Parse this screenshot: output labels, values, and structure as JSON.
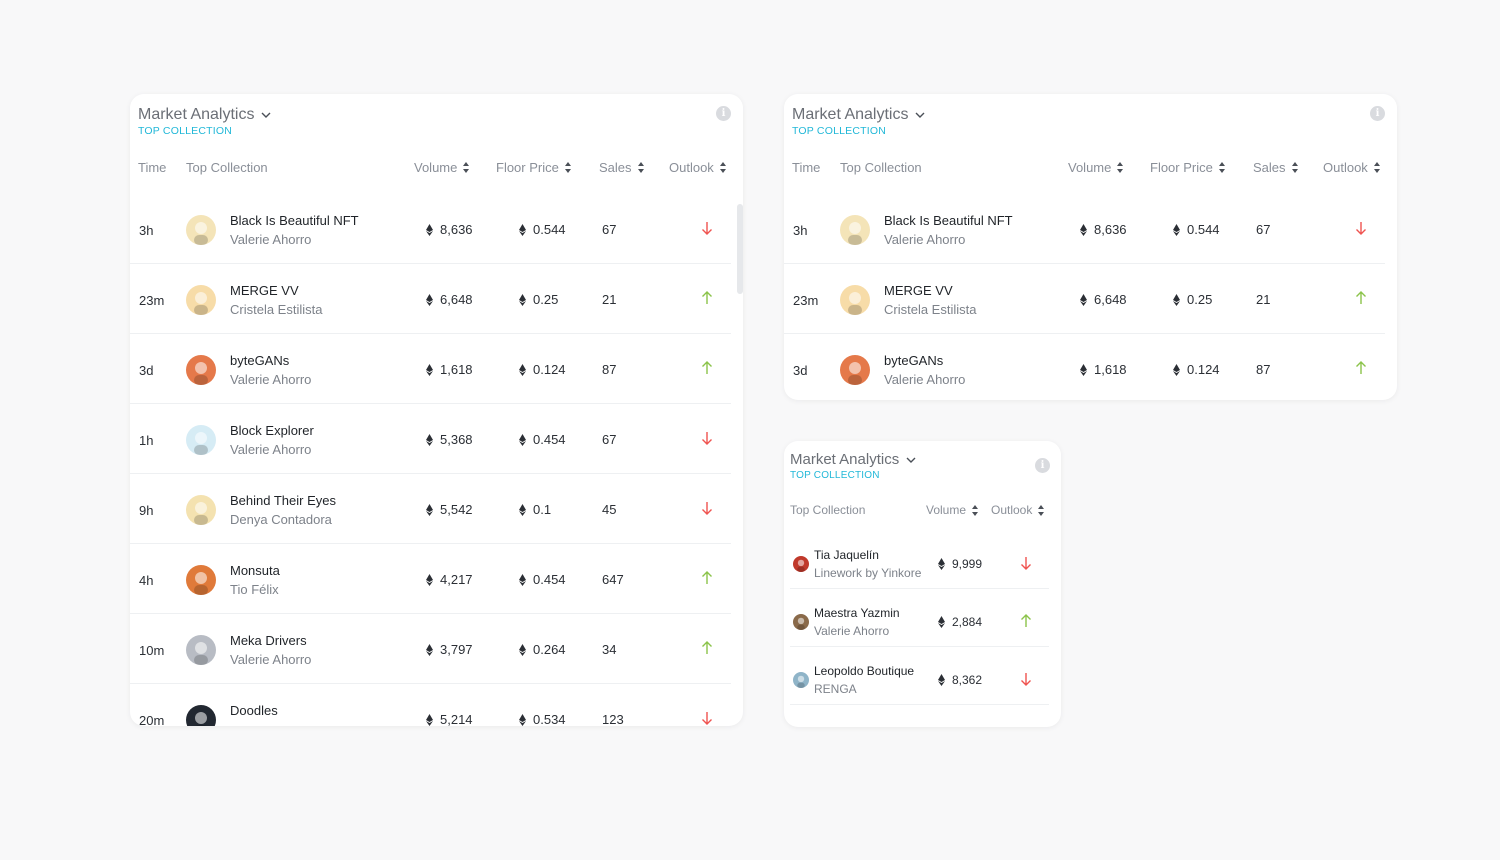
{
  "colors": {
    "up": "#8bc34a",
    "down": "#ef5350",
    "accent": "#22b8d8"
  },
  "card1": {
    "title": "Market Analytics",
    "subtitle": "TOP COLLECTION",
    "headers": {
      "time": "Time",
      "collection": "Top Collection",
      "volume": "Volume",
      "floor": "Floor Price",
      "sales": "Sales",
      "outlook": "Outlook"
    },
    "rows": [
      {
        "time": "3h",
        "name": "Black Is Beautiful NFT",
        "creator": "Valerie Ahorro",
        "volume": "8,636",
        "floor": "0.544",
        "sales": "67",
        "outlook": "down",
        "avatar": "#f4e4b8"
      },
      {
        "time": "23m",
        "name": "MERGE VV",
        "creator": "Cristela Estilista",
        "volume": "6,648",
        "floor": "0.25",
        "sales": "21",
        "outlook": "up",
        "avatar": "#f7dca8"
      },
      {
        "time": "3d",
        "name": "byteGANs",
        "creator": "Valerie Ahorro",
        "volume": "1,618",
        "floor": "0.124",
        "sales": "87",
        "outlook": "up",
        "avatar": "#e5794a"
      },
      {
        "time": "1h",
        "name": "Block Explorer",
        "creator": "Valerie Ahorro",
        "volume": "5,368",
        "floor": "0.454",
        "sales": "67",
        "outlook": "down",
        "avatar": "#d6ecf5"
      },
      {
        "time": "9h",
        "name": "Behind Their Eyes",
        "creator": "Denya Contadora",
        "volume": "5,542",
        "floor": "0.1",
        "sales": "45",
        "outlook": "down",
        "avatar": "#f4e2b0"
      },
      {
        "time": "4h",
        "name": "Monsuta",
        "creator": "Tio Félix",
        "volume": "4,217",
        "floor": "0.454",
        "sales": "647",
        "outlook": "up",
        "avatar": "#e07a3a"
      },
      {
        "time": "10m",
        "name": "Meka Drivers",
        "creator": "Valerie Ahorro",
        "volume": "3,797",
        "floor": "0.264",
        "sales": "34",
        "outlook": "up",
        "avatar": "#b8bcc4"
      },
      {
        "time": "20m",
        "name": "Doodles",
        "creator": "",
        "volume": "5,214",
        "floor": "0.534",
        "sales": "123",
        "outlook": "down",
        "avatar": "#222831"
      }
    ]
  },
  "card2": {
    "title": "Market Analytics",
    "subtitle": "TOP COLLECTION",
    "headers": {
      "time": "Time",
      "collection": "Top Collection",
      "volume": "Volume",
      "floor": "Floor Price",
      "sales": "Sales",
      "outlook": "Outlook"
    },
    "rows": [
      {
        "time": "3h",
        "name": "Black Is Beautiful NFT",
        "creator": "Valerie Ahorro",
        "volume": "8,636",
        "floor": "0.544",
        "sales": "67",
        "outlook": "down",
        "avatar": "#f4e4b8"
      },
      {
        "time": "23m",
        "name": "MERGE VV",
        "creator": "Cristela Estilista",
        "volume": "6,648",
        "floor": "0.25",
        "sales": "21",
        "outlook": "up",
        "avatar": "#f7dca8"
      },
      {
        "time": "3d",
        "name": "byteGANs",
        "creator": "Valerie Ahorro",
        "volume": "1,618",
        "floor": "0.124",
        "sales": "87",
        "outlook": "up",
        "avatar": "#e5794a"
      }
    ]
  },
  "card3": {
    "title": "Market Analytics",
    "subtitle": "TOP COLLECTION",
    "headers": {
      "collection": "Top Collection",
      "volume": "Volume",
      "outlook": "Outlook"
    },
    "rows": [
      {
        "name": "Tia Jaquelín",
        "creator": "Linework by Yinkore",
        "volume": "9,999",
        "outlook": "down",
        "avatar": "#c0392b"
      },
      {
        "name": "Maestra Yazmin",
        "creator": "Valerie Ahorro",
        "volume": "2,884",
        "outlook": "up",
        "avatar": "#8a6a4a"
      },
      {
        "name": "Leopoldo Boutique",
        "creator": "RENGA",
        "volume": "8,362",
        "outlook": "down",
        "avatar": "#8fb4c8"
      }
    ]
  }
}
